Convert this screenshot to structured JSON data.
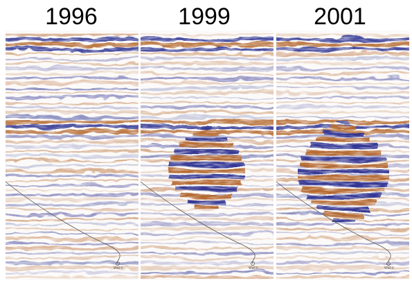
{
  "panels": [
    {
      "year": "1996"
    },
    {
      "year": "1999"
    },
    {
      "year": "2001"
    }
  ],
  "well_label": "Well II",
  "colors": {
    "positive": "#b3652a",
    "negative": "#2a2f8f",
    "background": "#ffffff"
  }
}
